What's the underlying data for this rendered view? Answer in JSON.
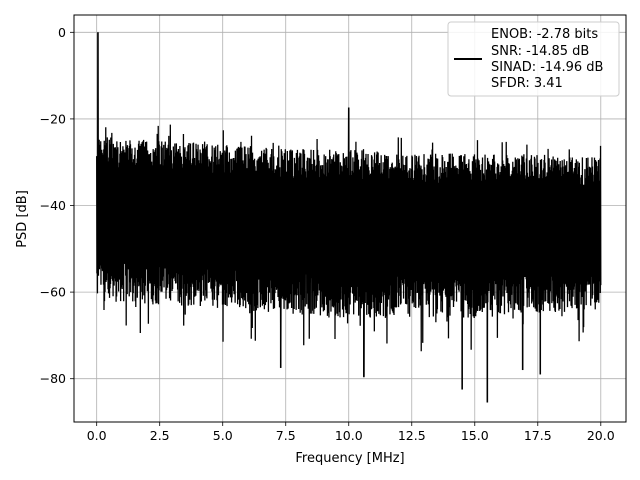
{
  "chart_data": {
    "type": "line",
    "xlabel": "Frequency [MHz]",
    "ylabel": "PSD [dB]",
    "xlim": [
      -0.9,
      21.0
    ],
    "ylim": [
      -90.0,
      4.0
    ],
    "xticks": [
      0.0,
      2.5,
      5.0,
      7.5,
      10.0,
      12.5,
      15.0,
      17.5,
      20.0
    ],
    "xtick_labels": [
      "0.0",
      "2.5",
      "5.0",
      "7.5",
      "10.0",
      "12.5",
      "15.0",
      "17.5",
      "20.0"
    ],
    "yticks": [
      0,
      -20,
      -40,
      -60,
      -80
    ],
    "ytick_labels": [
      "0",
      "−20",
      "−40",
      "−60",
      "−80"
    ],
    "grid": true,
    "legend_position": "top-right",
    "line_color": "#000000",
    "legend_lines": [
      "ENOB: -2.78 bits",
      "SNR: -14.85 dB",
      "SINAD: -14.96 dB",
      "SFDR: 3.41"
    ],
    "series": [
      {
        "x_range": [
          0.0,
          20.0
        ],
        "points": 2000,
        "upper_envelope": {
          "x": [
            0.0,
            2.5,
            5.0,
            7.5,
            10.0,
            12.5,
            15.0,
            17.5,
            20.0
          ],
          "y": [
            -24,
            -25,
            -26,
            -27,
            -27,
            -28,
            -28,
            -28,
            -29
          ]
        },
        "lower_envelope": {
          "x": [
            0.0,
            2.5,
            5.0,
            7.5,
            10.0,
            12.5,
            15.0,
            17.5,
            20.0
          ],
          "y": [
            -62,
            -63,
            -64,
            -65,
            -66,
            -66,
            -66,
            -65,
            -64
          ]
        },
        "peaks": [
          {
            "x": 0.05,
            "y": 0.0
          },
          {
            "x": 10.0,
            "y": -17.5
          }
        ],
        "dips": [
          {
            "x": 7.3,
            "y": -77.5
          },
          {
            "x": 10.6,
            "y": -79.5
          },
          {
            "x": 14.5,
            "y": -82.5
          },
          {
            "x": 15.5,
            "y": -85.5
          },
          {
            "x": 16.9,
            "y": -78.0
          },
          {
            "x": 17.6,
            "y": -79.0
          }
        ]
      }
    ]
  }
}
